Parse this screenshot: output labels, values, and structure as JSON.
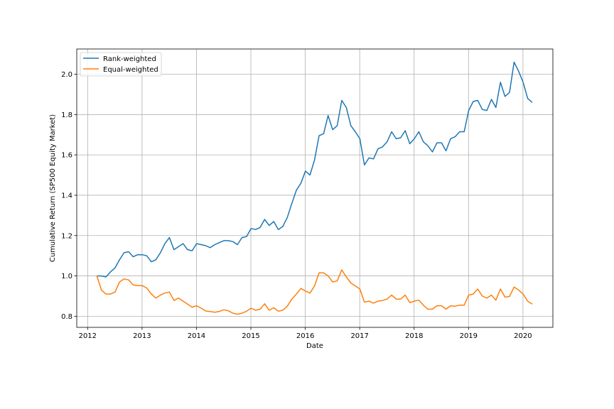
{
  "chart_data": {
    "type": "line",
    "title": "",
    "xlabel": "Date",
    "ylabel": "Cumulative Return (SP500 Equity Market)",
    "xlim": [
      2011.8,
      2020.55
    ],
    "ylim": [
      0.745,
      2.125
    ],
    "grid": true,
    "legend_position": "top-left",
    "x_ticks": [
      {
        "value": 2012,
        "label": "2012"
      },
      {
        "value": 2013,
        "label": "2013"
      },
      {
        "value": 2014,
        "label": "2014"
      },
      {
        "value": 2015,
        "label": "2015"
      },
      {
        "value": 2016,
        "label": "2016"
      },
      {
        "value": 2017,
        "label": "2017"
      },
      {
        "value": 2018,
        "label": "2018"
      },
      {
        "value": 2019,
        "label": "2019"
      },
      {
        "value": 2020,
        "label": "2020"
      }
    ],
    "y_ticks": [
      {
        "value": 0.8,
        "label": "0.8"
      },
      {
        "value": 1.0,
        "label": "1.0"
      },
      {
        "value": 1.2,
        "label": "1.2"
      },
      {
        "value": 1.4,
        "label": "1.4"
      },
      {
        "value": 1.6,
        "label": "1.6"
      },
      {
        "value": 1.8,
        "label": "1.8"
      },
      {
        "value": 2.0,
        "label": "2.0"
      }
    ],
    "x_start": 2012.17,
    "x_step": 0.08333,
    "series": [
      {
        "name": "Rank-weighted",
        "color": "#1f77b4",
        "values": [
          1.0,
          1.0,
          0.995,
          1.02,
          1.04,
          1.08,
          1.115,
          1.12,
          1.095,
          1.105,
          1.105,
          1.1,
          1.07,
          1.08,
          1.115,
          1.16,
          1.19,
          1.13,
          1.145,
          1.16,
          1.13,
          1.125,
          1.16,
          1.155,
          1.15,
          1.14,
          1.155,
          1.165,
          1.175,
          1.175,
          1.17,
          1.155,
          1.19,
          1.195,
          1.235,
          1.23,
          1.24,
          1.28,
          1.25,
          1.27,
          1.23,
          1.245,
          1.29,
          1.36,
          1.425,
          1.46,
          1.52,
          1.5,
          1.575,
          1.695,
          1.705,
          1.795,
          1.725,
          1.745,
          1.87,
          1.835,
          1.745,
          1.715,
          1.68,
          1.55,
          1.585,
          1.58,
          1.63,
          1.64,
          1.665,
          1.715,
          1.68,
          1.685,
          1.72,
          1.655,
          1.68,
          1.715,
          1.665,
          1.645,
          1.615,
          1.66,
          1.66,
          1.62,
          1.68,
          1.69,
          1.715,
          1.715,
          1.82,
          1.865,
          1.87,
          1.825,
          1.82,
          1.875,
          1.835,
          1.96,
          1.89,
          1.91,
          2.06,
          2.015,
          1.96,
          1.88,
          1.86
        ]
      },
      {
        "name": "Equal-weighted",
        "color": "#ff7f0e",
        "values": [
          1.0,
          0.93,
          0.91,
          0.91,
          0.92,
          0.97,
          0.985,
          0.98,
          0.955,
          0.952,
          0.952,
          0.94,
          0.91,
          0.89,
          0.905,
          0.915,
          0.92,
          0.878,
          0.89,
          0.875,
          0.86,
          0.845,
          0.852,
          0.84,
          0.826,
          0.823,
          0.82,
          0.824,
          0.832,
          0.827,
          0.815,
          0.81,
          0.815,
          0.825,
          0.84,
          0.83,
          0.835,
          0.862,
          0.83,
          0.842,
          0.825,
          0.83,
          0.85,
          0.885,
          0.91,
          0.938,
          0.925,
          0.915,
          0.95,
          1.015,
          1.015,
          1.0,
          0.97,
          0.975,
          1.03,
          0.995,
          0.965,
          0.95,
          0.935,
          0.87,
          0.875,
          0.865,
          0.875,
          0.878,
          0.885,
          0.905,
          0.885,
          0.885,
          0.905,
          0.868,
          0.875,
          0.88,
          0.855,
          0.835,
          0.835,
          0.852,
          0.852,
          0.835,
          0.852,
          0.85,
          0.855,
          0.855,
          0.905,
          0.91,
          0.935,
          0.9,
          0.89,
          0.905,
          0.88,
          0.935,
          0.895,
          0.898,
          0.945,
          0.93,
          0.91,
          0.875,
          0.86
        ]
      }
    ]
  }
}
